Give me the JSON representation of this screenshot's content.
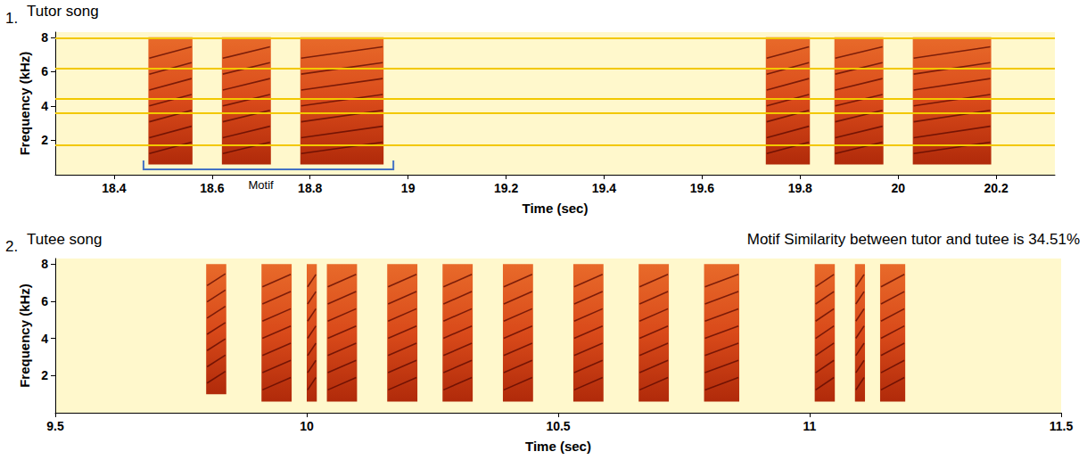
{
  "chart_data": [
    {
      "type": "spectrogram",
      "label": "1.",
      "title": "Tutor song",
      "x_label": "Time (sec)",
      "y_label": "Frequency (kHz)",
      "xlim": [
        18.28,
        20.32
      ],
      "xticks": [
        18.4,
        18.6,
        18.8,
        19,
        19.2,
        19.4,
        19.6,
        19.8,
        20,
        20.2
      ],
      "ylim": [
        0,
        8.3
      ],
      "yticks": [
        2,
        4,
        6,
        8
      ],
      "grid": false,
      "color": "#d94a1a",
      "syllables": [
        {
          "start": 18.47,
          "end": 18.56,
          "fmin": 0.6,
          "fmax": 8
        },
        {
          "start": 18.62,
          "end": 18.72,
          "fmin": 0.6,
          "fmax": 8
        },
        {
          "start": 18.78,
          "end": 18.95,
          "fmin": 0.6,
          "fmax": 8
        },
        {
          "start": 19.73,
          "end": 19.82,
          "fmin": 0.6,
          "fmax": 8
        },
        {
          "start": 19.87,
          "end": 19.97,
          "fmin": 0.6,
          "fmax": 8
        },
        {
          "start": 20.03,
          "end": 20.19,
          "fmin": 0.6,
          "fmax": 8
        }
      ],
      "noise_bands": [
        7.95,
        6.2,
        4.4,
        3.6,
        1.75
      ],
      "bracket": {
        "label": "Motif",
        "start": 18.46,
        "end": 18.97,
        "color": "#4472c4"
      }
    },
    {
      "type": "spectrogram",
      "label": "2.",
      "title": "Tutee song",
      "annotation": "Motif Similarity between tutor and tutee is 34.51%",
      "x_label": "Time (sec)",
      "y_label": "Frequency (kHz)",
      "xlim": [
        9.5,
        11.5
      ],
      "xticks": [
        9.5,
        10,
        10.5,
        11,
        11.5
      ],
      "ylim": [
        0,
        8.3
      ],
      "yticks": [
        2,
        4,
        6,
        8
      ],
      "grid": false,
      "color": "#d94a1a",
      "syllables": [
        {
          "start": 9.8,
          "end": 9.84,
          "fmin": 1,
          "fmax": 8
        },
        {
          "start": 9.91,
          "end": 9.97,
          "fmin": 0.6,
          "fmax": 8
        },
        {
          "start": 10.0,
          "end": 10.02,
          "fmin": 0.6,
          "fmax": 8
        },
        {
          "start": 10.04,
          "end": 10.1,
          "fmin": 0.6,
          "fmax": 8
        },
        {
          "start": 10.16,
          "end": 10.22,
          "fmin": 0.6,
          "fmax": 8
        },
        {
          "start": 10.27,
          "end": 10.33,
          "fmin": 0.6,
          "fmax": 8
        },
        {
          "start": 10.39,
          "end": 10.45,
          "fmin": 0.6,
          "fmax": 8
        },
        {
          "start": 10.53,
          "end": 10.59,
          "fmin": 0.6,
          "fmax": 8
        },
        {
          "start": 10.66,
          "end": 10.72,
          "fmin": 0.6,
          "fmax": 8
        },
        {
          "start": 10.79,
          "end": 10.86,
          "fmin": 0.6,
          "fmax": 8
        },
        {
          "start": 11.01,
          "end": 11.05,
          "fmin": 0.6,
          "fmax": 8
        },
        {
          "start": 11.09,
          "end": 11.11,
          "fmin": 0.6,
          "fmax": 8
        },
        {
          "start": 11.14,
          "end": 11.19,
          "fmin": 0.6,
          "fmax": 8
        }
      ]
    }
  ]
}
